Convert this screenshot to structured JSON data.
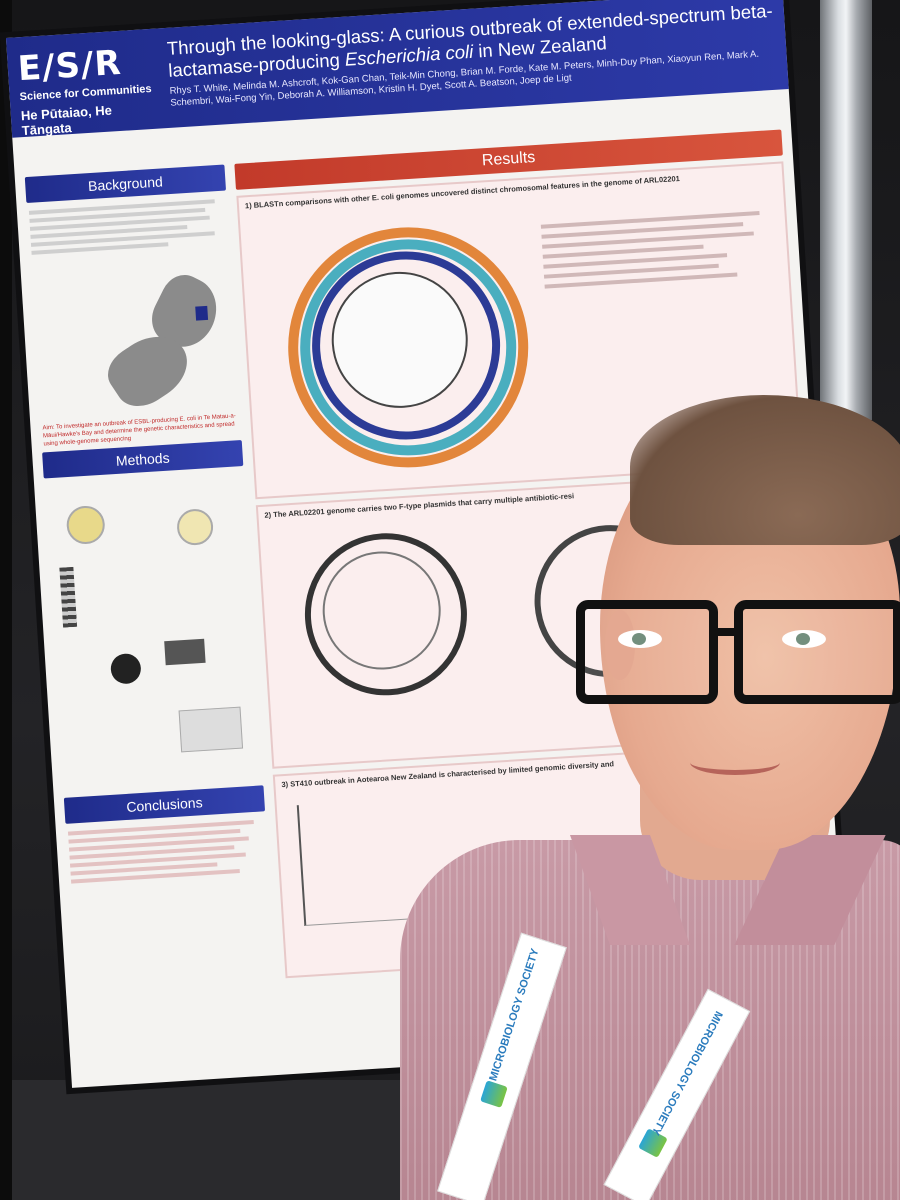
{
  "poster": {
    "logo_mark": "E/S/R",
    "logo_tag": "Science for Communities",
    "logo_sub": "He Pūtaiao, He Tāngata",
    "title_part1": "Through the looking-glass: A curious outbreak of extended-spectrum beta-lactamase-producing",
    "title_italic": "Escherichia coli",
    "title_part2": "in New Zealand",
    "authors": "Rhys T. White, Melinda M. Ashcroft, Kok-Gan Chan, Teik-Min Chong, Brian M. Forde, Kate M. Peters, Minh-Duy Phan, Xiaoyun Ren, Mark A. Schembri, Wai-Fong Yin, Deborah A. Williamson, Kristin H. Dyet, Scott A. Beatson, Joep de Ligt",
    "sections": {
      "background": "Background",
      "methods": "Methods",
      "conclusions": "Conclusions",
      "results": "Results"
    },
    "aim": "Aim: To investigate an outbreak of ESBL-producing E. coli in Te Matau-a-Māui/Hawke's Bay and determine the genetic characteristics and spread using whole-genome sequencing",
    "panel1_title": "1) BLASTn comparisons with other E. coli genomes uncovered distinct chromosomal features in the genome of ARL02201",
    "panel2_title": "2) The ARL02201 genome carries two F-type plasmids that carry multiple antibiotic-resi",
    "panel3_title": "3) ST410 outbreak in Aotearoa New Zealand is characterised by limited genomic diversity and",
    "footer_logo": "MICROBIOLOGY SOCIETY"
  },
  "lanyard": {
    "text": "MICROBIOLOGY SOCIETY"
  },
  "colors": {
    "header_blue": "#1f2b8a",
    "results_red": "#c23a2a",
    "shirt": "#c89aa6"
  }
}
